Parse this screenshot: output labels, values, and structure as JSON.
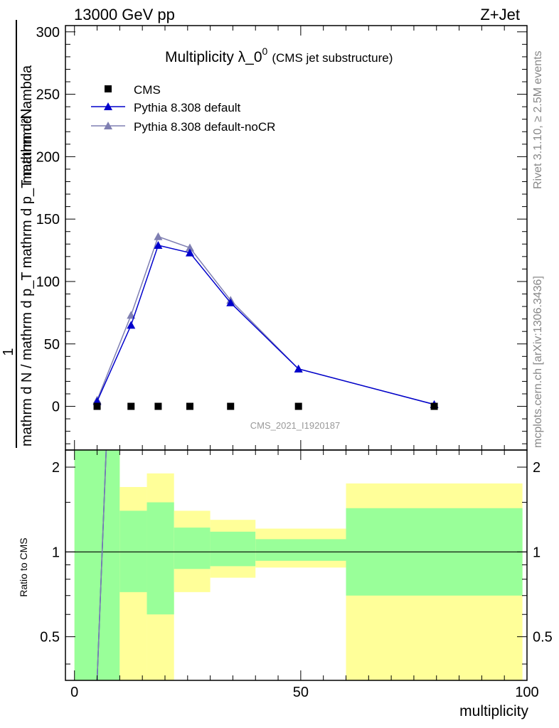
{
  "header": {
    "left": "13000 GeV pp",
    "right": "Z+Jet"
  },
  "side_text": {
    "rivet": "Rivet 3.1.10, ≥ 2.5M events",
    "mcplots": "mcplots.cern.ch [arXiv:1306.3436]"
  },
  "colors": {
    "cms": "#000000",
    "pythia_default": "#0000cc",
    "pythia_nocr": "#7f7fb2",
    "band_inner": "#99ff99",
    "band_outer": "#ffff99"
  },
  "chart_data": [
    {
      "type": "line",
      "title": "Multiplicity λ_0",
      "title_superscript": "0",
      "subtitle": "(CMS jet substructure)",
      "watermark": "CMS_2021_I1920187",
      "ylabel_numerator": "mathrm d²N",
      "ylabel_denominator": "mathrm d N / mathrm d p_T mathrm d p_T mathrm d lambda",
      "ylabel_prefix": "1",
      "ylim": [
        -35,
        305
      ],
      "xlim": [
        -2,
        100
      ],
      "yticks": [
        0,
        50,
        100,
        150,
        200,
        250,
        300
      ],
      "legend_position": "top-left",
      "series": [
        {
          "name": "CMS",
          "marker": "square",
          "x": [
            5,
            12.5,
            18.5,
            25.5,
            34.5,
            49.5,
            79.5
          ],
          "y": [
            0,
            0,
            0,
            0,
            0,
            0,
            0
          ]
        },
        {
          "name": "Pythia 8.308 default",
          "marker": "triangle",
          "x": [
            5,
            12.5,
            18.5,
            25.5,
            34.5,
            49.5,
            79.5
          ],
          "y": [
            4,
            65,
            129,
            123,
            83,
            30,
            1.5
          ]
        },
        {
          "name": "Pythia 8.308 default-noCR",
          "marker": "triangle",
          "x": [
            5,
            12.5,
            18.5,
            25.5,
            34.5,
            49.5,
            79.5
          ],
          "y": [
            5,
            73,
            136,
            127,
            85,
            30,
            1.5
          ]
        }
      ]
    },
    {
      "type": "area",
      "ylabel": "Ratio to CMS",
      "xlabel": "multiplicity",
      "xlim": [
        -2,
        100
      ],
      "ylim": [
        0.35,
        2.3
      ],
      "log_scale_y": true,
      "xticks": [
        0,
        50,
        100
      ],
      "yticks": [
        0.5,
        1,
        2
      ],
      "reference_line": 1,
      "bands": [
        {
          "x0": 0,
          "x1": 10,
          "inner": [
            0.35,
            2.3
          ],
          "outer": [
            0.35,
            2.3
          ]
        },
        {
          "x0": 10,
          "x1": 16,
          "inner": [
            0.72,
            1.4
          ],
          "outer": [
            0.35,
            1.7
          ]
        },
        {
          "x0": 16,
          "x1": 22,
          "inner": [
            0.6,
            1.5
          ],
          "outer": [
            0.35,
            1.9
          ]
        },
        {
          "x0": 22,
          "x1": 30,
          "inner": [
            0.87,
            1.22
          ],
          "outer": [
            0.72,
            1.4
          ]
        },
        {
          "x0": 30,
          "x1": 40,
          "inner": [
            0.89,
            1.18
          ],
          "outer": [
            0.81,
            1.3
          ]
        },
        {
          "x0": 40,
          "x1": 60,
          "inner": [
            0.93,
            1.11
          ],
          "outer": [
            0.88,
            1.21
          ]
        },
        {
          "x0": 60,
          "x1": 99,
          "inner": [
            0.7,
            1.43
          ],
          "outer": [
            0.35,
            1.75
          ]
        }
      ],
      "series": [
        {
          "name": "Pythia 8.308 default",
          "x": [
            5,
            7
          ],
          "y": [
            0.35,
            2.3
          ]
        },
        {
          "name": "Pythia 8.308 default-noCR",
          "x": [
            5,
            7
          ],
          "y": [
            0.35,
            2.3
          ]
        }
      ]
    }
  ]
}
